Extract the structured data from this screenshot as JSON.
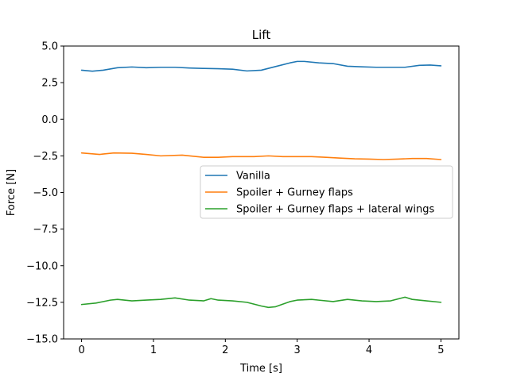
{
  "chart_data": {
    "type": "line",
    "title": "Lift",
    "xlabel": "Time [s]",
    "ylabel": "Force [N]",
    "xlim": [
      -0.25,
      5.25
    ],
    "ylim": [
      -15.0,
      5.0
    ],
    "xticks": [
      0,
      1,
      2,
      3,
      4,
      5
    ],
    "xtick_labels": [
      "0",
      "1",
      "2",
      "3",
      "4",
      "5"
    ],
    "yticks": [
      5.0,
      2.5,
      0.0,
      -2.5,
      -5.0,
      -7.5,
      -10.0,
      -12.5,
      -15.0
    ],
    "ytick_labels": [
      "5.0",
      "2.5",
      "0.0",
      "−2.5",
      "−5.0",
      "−7.5",
      "−10.0",
      "−12.5",
      "−15.0"
    ],
    "grid": false,
    "legend_position": "center-right",
    "series": [
      {
        "name": "Vanilla",
        "color": "#1f77b4",
        "x": [
          0,
          0.15,
          0.3,
          0.5,
          0.7,
          0.9,
          1.1,
          1.3,
          1.5,
          1.7,
          1.9,
          2.1,
          2.3,
          2.5,
          2.7,
          2.9,
          3.0,
          3.1,
          3.3,
          3.5,
          3.7,
          3.9,
          4.1,
          4.3,
          4.5,
          4.7,
          4.85,
          5.0
        ],
        "y": [
          3.35,
          3.28,
          3.35,
          3.52,
          3.57,
          3.52,
          3.55,
          3.55,
          3.5,
          3.47,
          3.45,
          3.42,
          3.3,
          3.35,
          3.6,
          3.85,
          3.95,
          3.95,
          3.85,
          3.8,
          3.62,
          3.58,
          3.55,
          3.55,
          3.55,
          3.68,
          3.7,
          3.65
        ]
      },
      {
        "name": "Spoiler + Gurney flaps",
        "color": "#ff7f0e",
        "x": [
          0,
          0.25,
          0.45,
          0.7,
          0.9,
          1.1,
          1.4,
          1.7,
          1.9,
          2.1,
          2.4,
          2.6,
          2.8,
          3.0,
          3.2,
          3.4,
          3.6,
          3.8,
          4.0,
          4.2,
          4.4,
          4.6,
          4.8,
          5.0
        ],
        "y": [
          -2.3,
          -2.4,
          -2.3,
          -2.32,
          -2.4,
          -2.5,
          -2.45,
          -2.6,
          -2.6,
          -2.55,
          -2.55,
          -2.5,
          -2.55,
          -2.55,
          -2.55,
          -2.6,
          -2.65,
          -2.7,
          -2.72,
          -2.75,
          -2.72,
          -2.68,
          -2.68,
          -2.75
        ]
      },
      {
        "name": "Spoiler + Gurney flaps + lateral wings",
        "color": "#2ca02c",
        "x": [
          0,
          0.2,
          0.4,
          0.5,
          0.7,
          0.9,
          1.1,
          1.3,
          1.5,
          1.7,
          1.8,
          1.9,
          2.1,
          2.3,
          2.5,
          2.6,
          2.7,
          2.9,
          3.0,
          3.2,
          3.3,
          3.5,
          3.7,
          3.9,
          4.1,
          4.3,
          4.5,
          4.6,
          4.8,
          5.0
        ],
        "y": [
          -12.65,
          -12.55,
          -12.35,
          -12.3,
          -12.4,
          -12.35,
          -12.3,
          -12.2,
          -12.35,
          -12.4,
          -12.25,
          -12.35,
          -12.4,
          -12.5,
          -12.75,
          -12.85,
          -12.8,
          -12.45,
          -12.35,
          -12.3,
          -12.35,
          -12.45,
          -12.3,
          -12.4,
          -12.45,
          -12.4,
          -12.15,
          -12.3,
          -12.4,
          -12.5
        ]
      }
    ]
  }
}
